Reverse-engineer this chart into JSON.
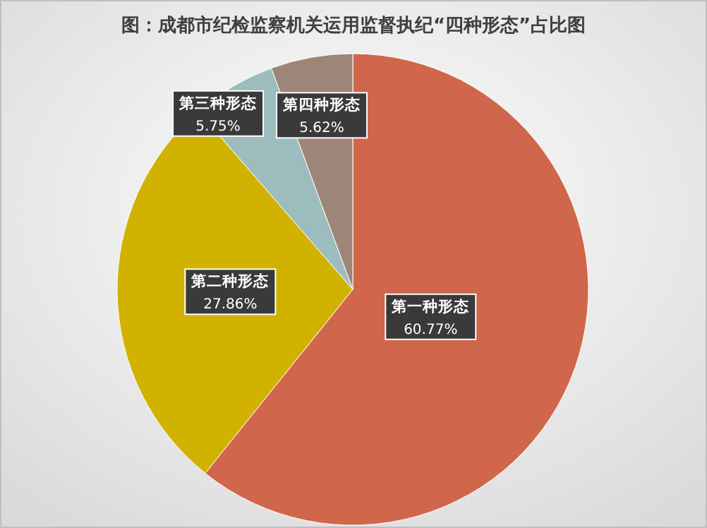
{
  "chart_data": {
    "type": "pie",
    "title": "图：成都市纪检监察机关运用监督执纪“四种形态”占比图",
    "categories": [
      "第一种形态",
      "第二种形态",
      "第三种形态",
      "第四种形态"
    ],
    "values": [
      60.77,
      27.86,
      5.75,
      5.62
    ],
    "value_labels": [
      "60.77%",
      "27.86%",
      "5.75%",
      "5.62%"
    ],
    "colors": [
      "#d0664b",
      "#d2b200",
      "#9cbcbd",
      "#9d8577"
    ],
    "legend": false
  }
}
